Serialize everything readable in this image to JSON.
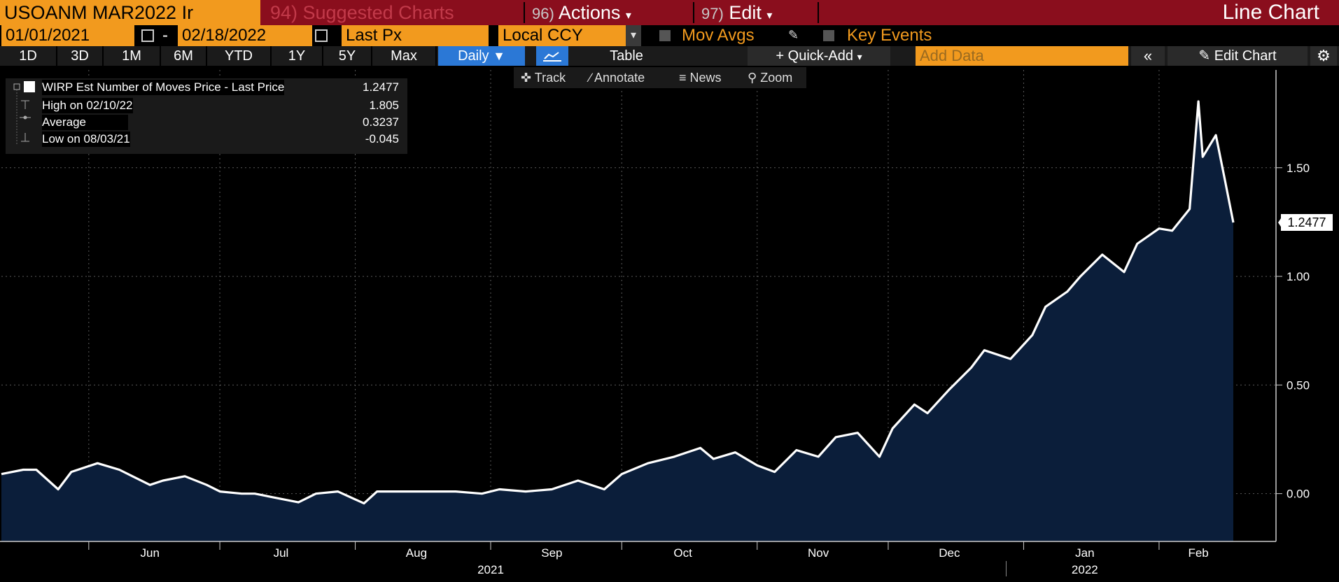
{
  "header": {
    "ticker": "USOANM MAR2022 Ir",
    "suggested": "94) Suggested Charts",
    "actions_num": "96)",
    "actions": "Actions",
    "edit_num": "97)",
    "edit": "Edit",
    "chart_type": "Line Chart"
  },
  "controls": {
    "start_date": "01/01/2021",
    "dash": "-",
    "end_date": "02/18/2022",
    "field": "Last Px",
    "currency": "Local CCY",
    "mov_avgs": "Mov Avgs",
    "key_events": "Key Events"
  },
  "periods": [
    "1D",
    "3D",
    "1M",
    "6M",
    "YTD",
    "1Y",
    "5Y",
    "Max"
  ],
  "toolbar": {
    "frequency": "Daily",
    "table": "Table",
    "quick_add": "Quick-Add",
    "add_data_placeholder": "Add Data",
    "edit_chart": "Edit Chart"
  },
  "chart_tools": {
    "track": "Track",
    "annotate": "Annotate",
    "news": "News",
    "zoom": "Zoom"
  },
  "legend": {
    "series_label": "WIRP Est Number of Moves Price - Last Price",
    "last_value": "1.2477",
    "high_label": "High on 02/10/22",
    "high_value": "1.805",
    "avg_label": "Average",
    "avg_value": "0.3237",
    "low_label": "Low on 08/03/21",
    "low_value": "-0.045"
  },
  "colors": {
    "accent_orange": "#f29a1e",
    "header_red": "#8a0e1d",
    "area_fill": "#0b1e3a",
    "line": "#ffffff",
    "daily_blue": "#2b78d6"
  },
  "chart_data": {
    "type": "area",
    "series": [
      {
        "name": "WIRP Est Number of Moves Price - Last Price",
        "x": [
          "2021-05-13",
          "2021-05-17",
          "2021-05-20",
          "2021-05-25",
          "2021-05-28",
          "2021-06-03",
          "2021-06-08",
          "2021-06-11",
          "2021-06-15",
          "2021-06-18",
          "2021-06-23",
          "2021-06-28",
          "2021-07-01",
          "2021-07-06",
          "2021-07-09",
          "2021-07-14",
          "2021-07-19",
          "2021-07-23",
          "2021-07-28",
          "2021-08-03",
          "2021-08-06",
          "2021-08-12",
          "2021-08-18",
          "2021-08-24",
          "2021-08-30",
          "2021-09-03",
          "2021-09-09",
          "2021-09-15",
          "2021-09-21",
          "2021-09-27",
          "2021-10-01",
          "2021-10-07",
          "2021-10-13",
          "2021-10-19",
          "2021-10-22",
          "2021-10-27",
          "2021-11-01",
          "2021-11-05",
          "2021-11-10",
          "2021-11-15",
          "2021-11-19",
          "2021-11-24",
          "2021-11-29",
          "2021-12-02",
          "2021-12-07",
          "2021-12-10",
          "2021-12-15",
          "2021-12-20",
          "2021-12-23",
          "2021-12-29",
          "2022-01-03",
          "2022-01-06",
          "2022-01-11",
          "2022-01-14",
          "2022-01-19",
          "2022-01-24",
          "2022-01-27",
          "2022-02-01",
          "2022-02-04",
          "2022-02-08",
          "2022-02-10",
          "2022-02-11",
          "2022-02-14",
          "2022-02-16",
          "2022-02-18"
        ],
        "values": [
          0.09,
          0.11,
          0.11,
          0.02,
          0.1,
          0.14,
          0.11,
          0.08,
          0.04,
          0.06,
          0.08,
          0.04,
          0.01,
          0.0,
          0.0,
          -0.02,
          -0.04,
          0.0,
          0.01,
          -0.045,
          0.01,
          0.01,
          0.01,
          0.01,
          0.0,
          0.02,
          0.01,
          0.02,
          0.06,
          0.02,
          0.09,
          0.14,
          0.17,
          0.21,
          0.16,
          0.19,
          0.13,
          0.1,
          0.2,
          0.17,
          0.26,
          0.28,
          0.17,
          0.3,
          0.41,
          0.37,
          0.48,
          0.58,
          0.66,
          0.62,
          0.73,
          0.86,
          0.93,
          1.0,
          1.1,
          1.02,
          1.15,
          1.22,
          1.21,
          1.31,
          1.805,
          1.55,
          1.65,
          1.45,
          1.2477
        ]
      }
    ],
    "ylim": [
      -0.22,
      1.95
    ],
    "yticks": [
      "0.00",
      "0.50",
      "1.00",
      "1.50"
    ],
    "ytick_values": [
      0,
      0.5,
      1.0,
      1.5
    ],
    "xmonths": [
      "Jun",
      "Jul",
      "Aug",
      "Sep",
      "Oct",
      "Nov",
      "Dec",
      "Jan",
      "Feb"
    ],
    "xmonth_dates": [
      "2021-06-15",
      "2021-07-15",
      "2021-08-15",
      "2021-09-15",
      "2021-10-15",
      "2021-11-15",
      "2021-12-15",
      "2022-01-15",
      "2022-02-10"
    ],
    "xdividers": [
      "2021-06-01",
      "2021-07-01",
      "2021-08-01",
      "2021-09-01",
      "2021-10-01",
      "2021-11-01",
      "2021-12-01",
      "2022-01-01",
      "2022-02-01"
    ],
    "years": [
      "2021",
      "2022"
    ],
    "year_dates": [
      "2021-09-01",
      "2022-01-15"
    ],
    "last_label": "1.2477",
    "grid": true
  }
}
